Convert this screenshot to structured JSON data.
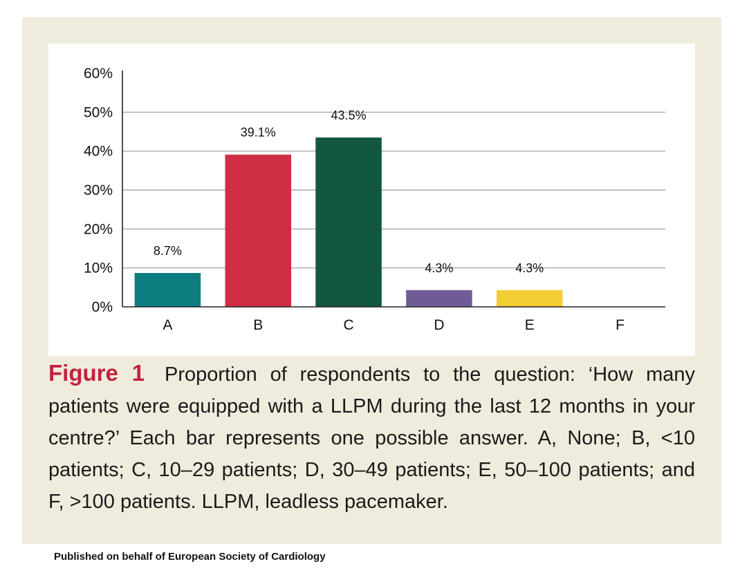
{
  "figure": {
    "label": "Figure 1",
    "caption": "Proportion of respondents to the question: ‘How many patients were equipped with a LLPM during the last 12 months in your centre?’ Each bar represents one possible answer. A, None; B, <10 patients; C, 10–29 patients; D, 30–49 patients; E, 50–100 patients; and F, >100 patients. LLPM, leadless pacemaker."
  },
  "publisher_note": "Published on behalf of European Society of Cardiology",
  "chart_data": {
    "type": "bar",
    "title": "",
    "xlabel": "",
    "ylabel": "",
    "categories": [
      "A",
      "B",
      "C",
      "D",
      "E",
      "F"
    ],
    "values": [
      8.7,
      39.1,
      43.5,
      4.3,
      4.3,
      0
    ],
    "data_labels": [
      "8.7%",
      "39.1%",
      "43.5%",
      "4.3%",
      "4.3%",
      ""
    ],
    "colors": [
      "#0e7d80",
      "#cf2e45",
      "#11583f",
      "#6f5c97",
      "#f2cd34",
      "#cccccc"
    ],
    "ylim": [
      0,
      60
    ],
    "yticks": [
      0,
      10,
      20,
      30,
      40,
      50,
      60
    ],
    "ytick_labels": [
      "0%",
      "10%",
      "20%",
      "30%",
      "40%",
      "50%",
      "60%"
    ],
    "grid": true
  }
}
